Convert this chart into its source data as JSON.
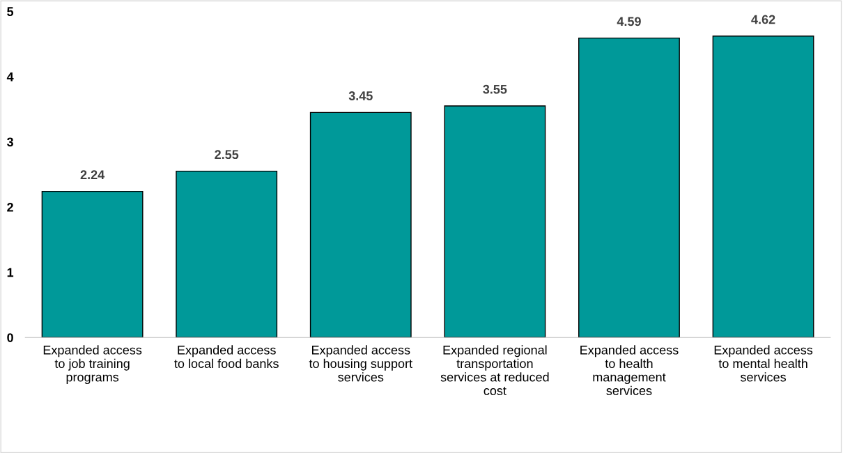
{
  "chart_data": {
    "type": "bar",
    "categories": [
      "Expanded access\nto job training\nprograms",
      "Expanded access\nto local food banks",
      "Expanded access\nto housing support\nservices",
      "Expanded regional\ntransportation\nservices at reduced\ncost",
      "Expanded access\nto health\nmanagement\nservices",
      "Expanded access\nto mental health\nservices"
    ],
    "values": [
      2.24,
      2.55,
      3.45,
      3.55,
      4.59,
      4.62
    ],
    "color": "#009999",
    "ylim": [
      0,
      5
    ],
    "yticks": [
      0,
      1,
      2,
      3,
      4,
      5
    ],
    "data_labels": true,
    "grid": false,
    "legend": false
  }
}
